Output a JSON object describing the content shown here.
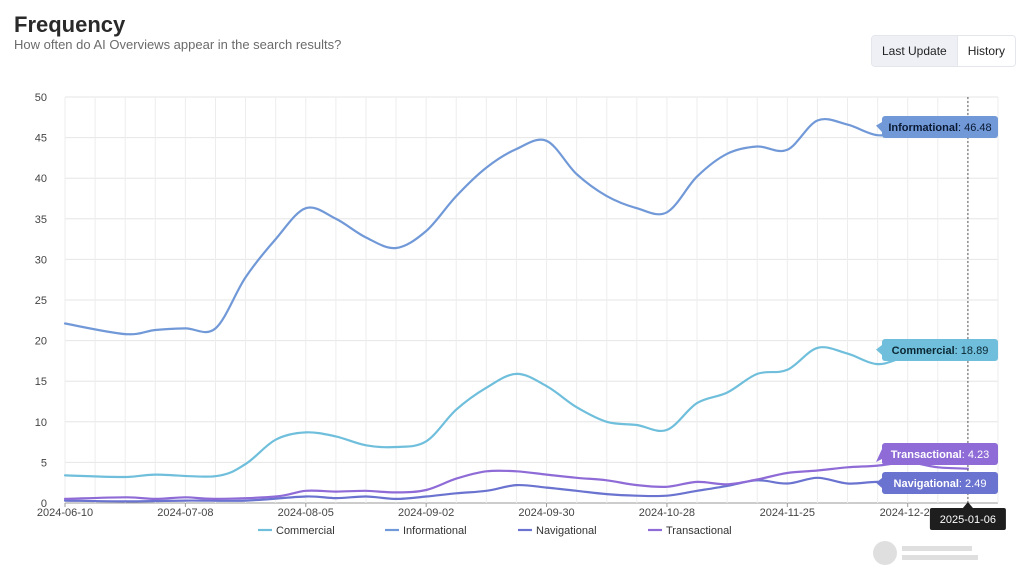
{
  "header": {
    "title": "Frequency",
    "subtitle": "How often do AI Overviews appear in the search results?"
  },
  "toggle": {
    "last_update": "Last Update",
    "history": "History"
  },
  "chart_data": {
    "type": "line",
    "ylim": [
      0,
      50
    ],
    "yticks": [
      0,
      5,
      10,
      15,
      20,
      25,
      30,
      35,
      40,
      45,
      50
    ],
    "x_range": [
      "2024-06-10",
      "2025-01-13"
    ],
    "x_tick_labels": [
      "2024-06-10",
      "2024-07-08",
      "2024-08-05",
      "2024-09-02",
      "2024-09-30",
      "2024-10-28",
      "2024-11-25",
      "2024-12-23"
    ],
    "grid": true,
    "legend_position": "bottom",
    "series": [
      {
        "name": "Commercial",
        "color": "#6fbfdc",
        "points": [
          [
            "2024-06-10",
            3.4
          ],
          [
            "2024-06-24",
            3.2
          ],
          [
            "2024-07-01",
            3.5
          ],
          [
            "2024-07-15",
            3.3
          ],
          [
            "2024-07-22",
            4.8
          ],
          [
            "2024-07-29",
            7.8
          ],
          [
            "2024-08-05",
            8.7
          ],
          [
            "2024-08-12",
            8.2
          ],
          [
            "2024-08-19",
            7.1
          ],
          [
            "2024-08-26",
            6.9
          ],
          [
            "2024-09-02",
            7.6
          ],
          [
            "2024-09-09",
            11.5
          ],
          [
            "2024-09-16",
            14.2
          ],
          [
            "2024-09-23",
            15.9
          ],
          [
            "2024-09-30",
            14.4
          ],
          [
            "2024-10-07",
            11.8
          ],
          [
            "2024-10-14",
            10.0
          ],
          [
            "2024-10-21",
            9.6
          ],
          [
            "2024-10-28",
            9.0
          ],
          [
            "2024-11-04",
            12.3
          ],
          [
            "2024-11-11",
            13.6
          ],
          [
            "2024-11-18",
            15.9
          ],
          [
            "2024-11-25",
            16.4
          ],
          [
            "2024-12-02",
            19.1
          ],
          [
            "2024-12-09",
            18.4
          ],
          [
            "2024-12-16",
            17.1
          ],
          [
            "2024-12-23",
            18.0
          ],
          [
            "2025-01-06",
            18.89
          ]
        ]
      },
      {
        "name": "Informational",
        "color": "#7199d8",
        "points": [
          [
            "2024-06-10",
            22.1
          ],
          [
            "2024-06-24",
            20.8
          ],
          [
            "2024-07-01",
            21.3
          ],
          [
            "2024-07-08",
            21.5
          ],
          [
            "2024-07-15",
            21.5
          ],
          [
            "2024-07-22",
            27.8
          ],
          [
            "2024-07-29",
            32.5
          ],
          [
            "2024-08-05",
            36.3
          ],
          [
            "2024-08-12",
            35.0
          ],
          [
            "2024-08-19",
            32.7
          ],
          [
            "2024-08-26",
            31.4
          ],
          [
            "2024-09-02",
            33.5
          ],
          [
            "2024-09-09",
            37.8
          ],
          [
            "2024-09-16",
            41.3
          ],
          [
            "2024-09-23",
            43.6
          ],
          [
            "2024-09-30",
            44.6
          ],
          [
            "2024-10-07",
            40.5
          ],
          [
            "2024-10-14",
            37.8
          ],
          [
            "2024-10-21",
            36.3
          ],
          [
            "2024-10-28",
            35.8
          ],
          [
            "2024-11-04",
            40.2
          ],
          [
            "2024-11-11",
            43.0
          ],
          [
            "2024-11-18",
            43.9
          ],
          [
            "2024-11-25",
            43.5
          ],
          [
            "2024-12-02",
            47.1
          ],
          [
            "2024-12-09",
            46.6
          ],
          [
            "2024-12-16",
            45.3
          ],
          [
            "2024-12-23",
            45.8
          ],
          [
            "2025-01-06",
            46.48
          ]
        ]
      },
      {
        "name": "Navigational",
        "color": "#6a73cf",
        "points": [
          [
            "2024-06-10",
            0.3
          ],
          [
            "2024-06-24",
            0.2
          ],
          [
            "2024-07-08",
            0.3
          ],
          [
            "2024-07-22",
            0.3
          ],
          [
            "2024-08-05",
            0.8
          ],
          [
            "2024-08-12",
            0.6
          ],
          [
            "2024-08-19",
            0.8
          ],
          [
            "2024-08-26",
            0.5
          ],
          [
            "2024-09-02",
            0.8
          ],
          [
            "2024-09-09",
            1.2
          ],
          [
            "2024-09-16",
            1.5
          ],
          [
            "2024-09-23",
            2.2
          ],
          [
            "2024-09-30",
            1.9
          ],
          [
            "2024-10-07",
            1.5
          ],
          [
            "2024-10-14",
            1.1
          ],
          [
            "2024-10-21",
            0.9
          ],
          [
            "2024-10-28",
            0.9
          ],
          [
            "2024-11-04",
            1.5
          ],
          [
            "2024-11-11",
            2.1
          ],
          [
            "2024-11-18",
            2.8
          ],
          [
            "2024-11-25",
            2.4
          ],
          [
            "2024-12-02",
            3.1
          ],
          [
            "2024-12-09",
            2.4
          ],
          [
            "2024-12-16",
            2.6
          ],
          [
            "2024-12-23",
            2.3
          ],
          [
            "2025-01-06",
            2.49
          ]
        ]
      },
      {
        "name": "Transactional",
        "color": "#8e6bd6",
        "points": [
          [
            "2024-06-10",
            0.5
          ],
          [
            "2024-06-24",
            0.7
          ],
          [
            "2024-07-01",
            0.5
          ],
          [
            "2024-07-08",
            0.7
          ],
          [
            "2024-07-15",
            0.5
          ],
          [
            "2024-07-29",
            0.8
          ],
          [
            "2024-08-05",
            1.5
          ],
          [
            "2024-08-12",
            1.4
          ],
          [
            "2024-08-19",
            1.5
          ],
          [
            "2024-08-26",
            1.3
          ],
          [
            "2024-09-02",
            1.6
          ],
          [
            "2024-09-09",
            3.0
          ],
          [
            "2024-09-16",
            3.9
          ],
          [
            "2024-09-23",
            3.9
          ],
          [
            "2024-09-30",
            3.5
          ],
          [
            "2024-10-07",
            3.1
          ],
          [
            "2024-10-14",
            2.8
          ],
          [
            "2024-10-21",
            2.2
          ],
          [
            "2024-10-28",
            2.0
          ],
          [
            "2024-11-04",
            2.6
          ],
          [
            "2024-11-11",
            2.3
          ],
          [
            "2024-11-18",
            2.9
          ],
          [
            "2024-11-25",
            3.7
          ],
          [
            "2024-12-02",
            4.0
          ],
          [
            "2024-12-09",
            4.4
          ],
          [
            "2024-12-16",
            4.6
          ],
          [
            "2024-12-23",
            5.0
          ],
          [
            "2024-12-30",
            4.4
          ],
          [
            "2025-01-06",
            4.23
          ]
        ]
      }
    ],
    "tooltip": {
      "date": "2025-01-06",
      "entries": [
        {
          "series": "Informational",
          "label": "Informational",
          "value": "46.48",
          "bg": "#7199d8",
          "fg": "#0b1a33"
        },
        {
          "series": "Commercial",
          "label": "Commercial",
          "value": "18.89",
          "bg": "#6fbfdc",
          "fg": "#0b2733"
        },
        {
          "series": "Transactional",
          "label": "Transactional",
          "value": "4.23",
          "bg": "#8e6bd6",
          "fg": "#ffffff"
        },
        {
          "series": "Navigational",
          "label": "Navigational",
          "value": "2.49",
          "bg": "#6a73cf",
          "fg": "#ffffff"
        }
      ]
    }
  }
}
